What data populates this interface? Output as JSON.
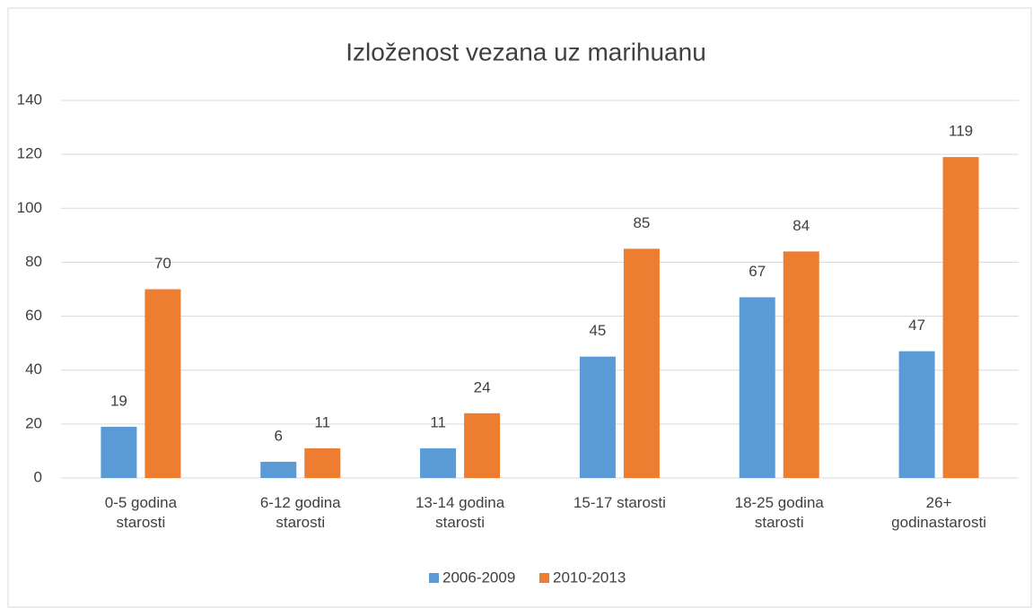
{
  "chart_data": {
    "type": "bar",
    "title": "Izloženost vezana uz marihuanu",
    "categories": [
      "0-5 godina starosti",
      "6-12 godina starosti",
      "13-14 godina starosti",
      "15-17 starosti",
      "18-25 godina starosti",
      "26+ godinastarosti"
    ],
    "series": [
      {
        "name": "2006-2009",
        "color": "#5b9bd5",
        "values": [
          19,
          6,
          11,
          45,
          67,
          47
        ]
      },
      {
        "name": "2010-2013",
        "color": "#ed7d31",
        "values": [
          70,
          11,
          24,
          85,
          84,
          119
        ]
      }
    ],
    "ylim": [
      0,
      140
    ],
    "yticks": [
      0,
      20,
      40,
      60,
      80,
      100,
      120,
      140
    ],
    "grid": true,
    "legend": "bottom"
  }
}
